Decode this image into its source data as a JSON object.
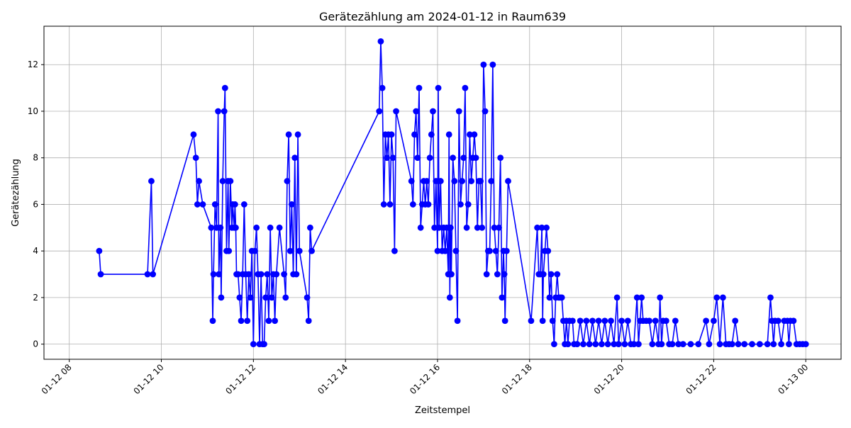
{
  "chart_data": {
    "type": "line",
    "title": "Gerätezählung am 2024-01-12 in Raum639",
    "xlabel": "Zeitstempel",
    "ylabel": "Gerätezählung",
    "x_ticks": [
      "01-12 08",
      "01-12 10",
      "01-12 12",
      "01-12 14",
      "01-12 16",
      "01-12 18",
      "01-12 20",
      "01-12 22",
      "01-13 00"
    ],
    "y_ticks": [
      0,
      2,
      4,
      6,
      8,
      10,
      12
    ],
    "xlim": [
      "2024-01-12 07:27",
      "2024-01-13 00:46"
    ],
    "ylim": [
      -0.65,
      13.65
    ],
    "grid": true,
    "series": [
      {
        "color": "#0000ff",
        "marker": "circle",
        "points": [
          [
            "2024-01-12 08:39",
            4
          ],
          [
            "2024-01-12 08:41",
            3
          ],
          [
            "2024-01-12 09:42",
            3
          ],
          [
            "2024-01-12 09:47",
            7
          ],
          [
            "2024-01-12 09:49",
            3
          ],
          [
            "2024-01-12 10:42",
            9
          ],
          [
            "2024-01-12 10:45",
            8
          ],
          [
            "2024-01-12 10:47",
            6
          ],
          [
            "2024-01-12 10:49",
            7
          ],
          [
            "2024-01-12 10:54",
            6
          ],
          [
            "2024-01-12 11:05",
            5
          ],
          [
            "2024-01-12 11:07",
            1
          ],
          [
            "2024-01-12 11:08",
            3
          ],
          [
            "2024-01-12 11:10",
            6
          ],
          [
            "2024-01-12 11:12",
            5
          ],
          [
            "2024-01-12 11:14",
            10
          ],
          [
            "2024-01-12 11:15",
            3
          ],
          [
            "2024-01-12 11:17",
            5
          ],
          [
            "2024-01-12 11:18",
            2
          ],
          [
            "2024-01-12 11:20",
            7
          ],
          [
            "2024-01-12 11:22",
            10
          ],
          [
            "2024-01-12 11:23",
            11
          ],
          [
            "2024-01-12 11:25",
            4
          ],
          [
            "2024-01-12 11:27",
            7
          ],
          [
            "2024-01-12 11:28",
            4
          ],
          [
            "2024-01-12 11:30",
            7
          ],
          [
            "2024-01-12 11:32",
            5
          ],
          [
            "2024-01-12 11:33",
            6
          ],
          [
            "2024-01-12 11:35",
            5
          ],
          [
            "2024-01-12 11:36",
            6
          ],
          [
            "2024-01-12 11:37",
            5
          ],
          [
            "2024-01-12 11:38",
            3
          ],
          [
            "2024-01-12 11:40",
            3
          ],
          [
            "2024-01-12 11:42",
            2
          ],
          [
            "2024-01-12 11:44",
            1
          ],
          [
            "2024-01-12 11:46",
            3
          ],
          [
            "2024-01-12 11:48",
            6
          ],
          [
            "2024-01-12 11:50",
            3
          ],
          [
            "2024-01-12 11:52",
            1
          ],
          [
            "2024-01-12 11:54",
            3
          ],
          [
            "2024-01-12 11:56",
            2
          ],
          [
            "2024-01-12 11:58",
            4
          ],
          [
            "2024-01-12 12:00",
            0
          ],
          [
            "2024-01-12 12:02",
            4
          ],
          [
            "2024-01-12 12:04",
            5
          ],
          [
            "2024-01-12 12:06",
            3
          ],
          [
            "2024-01-12 12:08",
            0
          ],
          [
            "2024-01-12 12:10",
            3
          ],
          [
            "2024-01-12 12:12",
            0
          ],
          [
            "2024-01-12 12:14",
            0
          ],
          [
            "2024-01-12 12:16",
            2
          ],
          [
            "2024-01-12 12:18",
            3
          ],
          [
            "2024-01-12 12:20",
            1
          ],
          [
            "2024-01-12 12:22",
            5
          ],
          [
            "2024-01-12 12:24",
            2
          ],
          [
            "2024-01-12 12:26",
            3
          ],
          [
            "2024-01-12 12:28",
            1
          ],
          [
            "2024-01-12 12:30",
            3
          ],
          [
            "2024-01-12 12:34",
            5
          ],
          [
            "2024-01-12 12:40",
            3
          ],
          [
            "2024-01-12 12:42",
            2
          ],
          [
            "2024-01-12 12:44",
            7
          ],
          [
            "2024-01-12 12:46",
            9
          ],
          [
            "2024-01-12 12:48",
            4
          ],
          [
            "2024-01-12 12:50",
            6
          ],
          [
            "2024-01-12 12:52",
            3
          ],
          [
            "2024-01-12 12:54",
            8
          ],
          [
            "2024-01-12 12:56",
            3
          ],
          [
            "2024-01-12 12:58",
            9
          ],
          [
            "2024-01-12 13:00",
            4
          ],
          [
            "2024-01-12 13:10",
            2
          ],
          [
            "2024-01-12 13:12",
            1
          ],
          [
            "2024-01-12 13:14",
            5
          ],
          [
            "2024-01-12 13:16",
            4
          ],
          [
            "2024-01-12 14:44",
            10
          ],
          [
            "2024-01-12 14:46",
            13
          ],
          [
            "2024-01-12 14:48",
            11
          ],
          [
            "2024-01-12 14:50",
            6
          ],
          [
            "2024-01-12 14:52",
            9
          ],
          [
            "2024-01-12 14:54",
            8
          ],
          [
            "2024-01-12 14:56",
            9
          ],
          [
            "2024-01-12 14:58",
            6
          ],
          [
            "2024-01-12 15:00",
            9
          ],
          [
            "2024-01-12 15:02",
            8
          ],
          [
            "2024-01-12 15:04",
            4
          ],
          [
            "2024-01-12 15:06",
            10
          ],
          [
            "2024-01-12 15:26",
            7
          ],
          [
            "2024-01-12 15:28",
            6
          ],
          [
            "2024-01-12 15:30",
            9
          ],
          [
            "2024-01-12 15:32",
            10
          ],
          [
            "2024-01-12 15:34",
            8
          ],
          [
            "2024-01-12 15:36",
            11
          ],
          [
            "2024-01-12 15:38",
            5
          ],
          [
            "2024-01-12 15:40",
            6
          ],
          [
            "2024-01-12 15:42",
            7
          ],
          [
            "2024-01-12 15:44",
            6
          ],
          [
            "2024-01-12 15:46",
            7
          ],
          [
            "2024-01-12 15:48",
            6
          ],
          [
            "2024-01-12 15:50",
            8
          ],
          [
            "2024-01-12 15:52",
            9
          ],
          [
            "2024-01-12 15:54",
            10
          ],
          [
            "2024-01-12 15:56",
            5
          ],
          [
            "2024-01-12 15:58",
            7
          ],
          [
            "2024-01-12 16:00",
            4
          ],
          [
            "2024-01-12 16:01",
            11
          ],
          [
            "2024-01-12 16:02",
            5
          ],
          [
            "2024-01-12 16:04",
            7
          ],
          [
            "2024-01-12 16:06",
            4
          ],
          [
            "2024-01-12 16:08",
            5
          ],
          [
            "2024-01-12 16:10",
            4
          ],
          [
            "2024-01-12 16:12",
            5
          ],
          [
            "2024-01-12 16:14",
            3
          ],
          [
            "2024-01-12 16:15",
            9
          ],
          [
            "2024-01-12 16:16",
            2
          ],
          [
            "2024-01-12 16:17",
            5
          ],
          [
            "2024-01-12 16:18",
            3
          ],
          [
            "2024-01-12 16:20",
            8
          ],
          [
            "2024-01-12 16:22",
            7
          ],
          [
            "2024-01-12 16:24",
            4
          ],
          [
            "2024-01-12 16:26",
            1
          ],
          [
            "2024-01-12 16:28",
            10
          ],
          [
            "2024-01-12 16:30",
            6
          ],
          [
            "2024-01-12 16:32",
            7
          ],
          [
            "2024-01-12 16:34",
            8
          ],
          [
            "2024-01-12 16:36",
            11
          ],
          [
            "2024-01-12 16:38",
            5
          ],
          [
            "2024-01-12 16:40",
            6
          ],
          [
            "2024-01-12 16:42",
            9
          ],
          [
            "2024-01-12 16:44",
            7
          ],
          [
            "2024-01-12 16:46",
            8
          ],
          [
            "2024-01-12 16:48",
            9
          ],
          [
            "2024-01-12 16:50",
            8
          ],
          [
            "2024-01-12 16:52",
            5
          ],
          [
            "2024-01-12 16:54",
            7
          ],
          [
            "2024-01-12 16:56",
            7
          ],
          [
            "2024-01-12 16:58",
            5
          ],
          [
            "2024-01-12 17:00",
            12
          ],
          [
            "2024-01-12 17:02",
            10
          ],
          [
            "2024-01-12 17:04",
            3
          ],
          [
            "2024-01-12 17:06",
            4
          ],
          [
            "2024-01-12 17:08",
            4
          ],
          [
            "2024-01-12 17:10",
            7
          ],
          [
            "2024-01-12 17:12",
            12
          ],
          [
            "2024-01-12 17:14",
            5
          ],
          [
            "2024-01-12 17:16",
            4
          ],
          [
            "2024-01-12 17:18",
            3
          ],
          [
            "2024-01-12 17:20",
            5
          ],
          [
            "2024-01-12 17:22",
            8
          ],
          [
            "2024-01-12 17:24",
            2
          ],
          [
            "2024-01-12 17:26",
            4
          ],
          [
            "2024-01-12 17:27",
            3
          ],
          [
            "2024-01-12 17:28",
            1
          ],
          [
            "2024-01-12 17:30",
            4
          ],
          [
            "2024-01-12 17:32",
            7
          ],
          [
            "2024-01-12 18:02",
            1
          ],
          [
            "2024-01-12 18:10",
            5
          ],
          [
            "2024-01-12 18:12",
            3
          ],
          [
            "2024-01-12 18:14",
            3
          ],
          [
            "2024-01-12 18:16",
            5
          ],
          [
            "2024-01-12 18:17",
            1
          ],
          [
            "2024-01-12 18:18",
            3
          ],
          [
            "2024-01-12 18:20",
            4
          ],
          [
            "2024-01-12 18:22",
            5
          ],
          [
            "2024-01-12 18:24",
            4
          ],
          [
            "2024-01-12 18:26",
            2
          ],
          [
            "2024-01-12 18:28",
            3
          ],
          [
            "2024-01-12 18:30",
            1
          ],
          [
            "2024-01-12 18:32",
            0
          ],
          [
            "2024-01-12 18:34",
            2
          ],
          [
            "2024-01-12 18:36",
            3
          ],
          [
            "2024-01-12 18:38",
            2
          ],
          [
            "2024-01-12 18:40",
            2
          ],
          [
            "2024-01-12 18:42",
            2
          ],
          [
            "2024-01-12 18:44",
            1
          ],
          [
            "2024-01-12 18:46",
            0
          ],
          [
            "2024-01-12 18:48",
            1
          ],
          [
            "2024-01-12 18:50",
            0
          ],
          [
            "2024-01-12 18:52",
            1
          ],
          [
            "2024-01-12 18:56",
            1
          ],
          [
            "2024-01-12 18:58",
            0
          ],
          [
            "2024-01-12 19:02",
            0
          ],
          [
            "2024-01-12 19:06",
            1
          ],
          [
            "2024-01-12 19:10",
            0
          ],
          [
            "2024-01-12 19:14",
            1
          ],
          [
            "2024-01-12 19:18",
            0
          ],
          [
            "2024-01-12 19:22",
            1
          ],
          [
            "2024-01-12 19:26",
            0
          ],
          [
            "2024-01-12 19:30",
            1
          ],
          [
            "2024-01-12 19:34",
            0
          ],
          [
            "2024-01-12 19:38",
            1
          ],
          [
            "2024-01-12 19:42",
            0
          ],
          [
            "2024-01-12 19:46",
            1
          ],
          [
            "2024-01-12 19:50",
            0
          ],
          [
            "2024-01-12 19:54",
            2
          ],
          [
            "2024-01-12 19:56",
            0
          ],
          [
            "2024-01-12 20:00",
            1
          ],
          [
            "2024-01-12 20:04",
            0
          ],
          [
            "2024-01-12 20:08",
            1
          ],
          [
            "2024-01-12 20:12",
            0
          ],
          [
            "2024-01-12 20:16",
            0
          ],
          [
            "2024-01-12 20:20",
            2
          ],
          [
            "2024-01-12 20:22",
            0
          ],
          [
            "2024-01-12 20:24",
            1
          ],
          [
            "2024-01-12 20:26",
            2
          ],
          [
            "2024-01-12 20:28",
            1
          ],
          [
            "2024-01-12 20:32",
            1
          ],
          [
            "2024-01-12 20:36",
            1
          ],
          [
            "2024-01-12 20:40",
            0
          ],
          [
            "2024-01-12 20:44",
            1
          ],
          [
            "2024-01-12 20:48",
            0
          ],
          [
            "2024-01-12 20:50",
            2
          ],
          [
            "2024-01-12 20:52",
            0
          ],
          [
            "2024-01-12 20:54",
            1
          ],
          [
            "2024-01-12 20:58",
            1
          ],
          [
            "2024-01-12 21:02",
            0
          ],
          [
            "2024-01-12 21:06",
            0
          ],
          [
            "2024-01-12 21:10",
            1
          ],
          [
            "2024-01-12 21:14",
            0
          ],
          [
            "2024-01-12 21:20",
            0
          ],
          [
            "2024-01-12 21:30",
            0
          ],
          [
            "2024-01-12 21:40",
            0
          ],
          [
            "2024-01-12 21:50",
            1
          ],
          [
            "2024-01-12 21:54",
            0
          ],
          [
            "2024-01-12 22:00",
            1
          ],
          [
            "2024-01-12 22:04",
            2
          ],
          [
            "2024-01-12 22:08",
            0
          ],
          [
            "2024-01-12 22:12",
            2
          ],
          [
            "2024-01-12 22:16",
            0
          ],
          [
            "2024-01-12 22:20",
            0
          ],
          [
            "2024-01-12 22:24",
            0
          ],
          [
            "2024-01-12 22:28",
            1
          ],
          [
            "2024-01-12 22:32",
            0
          ],
          [
            "2024-01-12 22:40",
            0
          ],
          [
            "2024-01-12 22:50",
            0
          ],
          [
            "2024-01-12 23:00",
            0
          ],
          [
            "2024-01-12 23:10",
            0
          ],
          [
            "2024-01-12 23:14",
            2
          ],
          [
            "2024-01-12 23:16",
            1
          ],
          [
            "2024-01-12 23:18",
            0
          ],
          [
            "2024-01-12 23:20",
            1
          ],
          [
            "2024-01-12 23:24",
            1
          ],
          [
            "2024-01-12 23:28",
            0
          ],
          [
            "2024-01-12 23:32",
            1
          ],
          [
            "2024-01-12 23:36",
            1
          ],
          [
            "2024-01-12 23:38",
            0
          ],
          [
            "2024-01-12 23:40",
            1
          ],
          [
            "2024-01-12 23:44",
            1
          ],
          [
            "2024-01-12 23:48",
            0
          ],
          [
            "2024-01-12 23:52",
            0
          ],
          [
            "2024-01-12 23:56",
            0
          ],
          [
            "2024-01-13 00:00",
            0
          ]
        ]
      }
    ]
  }
}
